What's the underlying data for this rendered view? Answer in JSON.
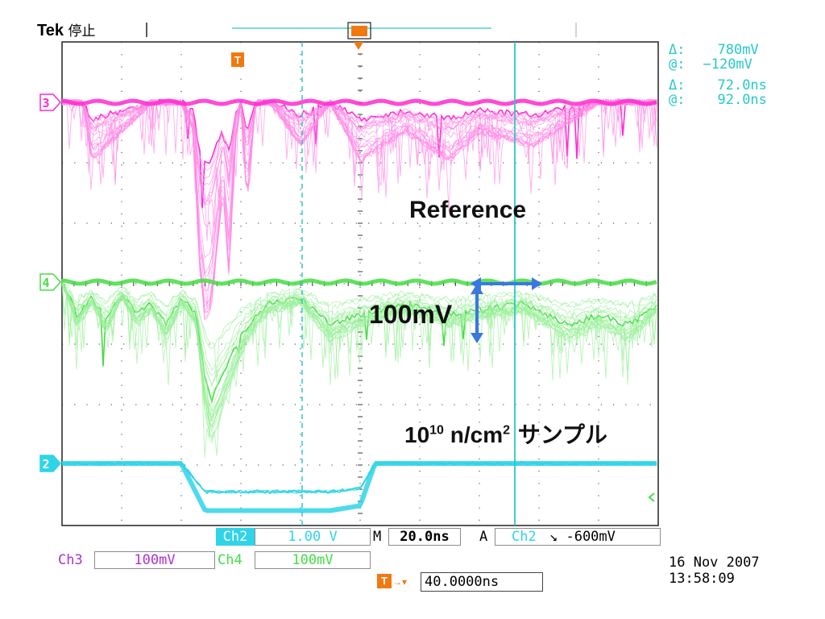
{
  "header": {
    "brand": "Tek",
    "status": "停止"
  },
  "cursor_readout": {
    "delta_v_symbol": "Δ:",
    "delta_v": "780mV",
    "at_v_symbol": "@:",
    "at_v": "−120mV",
    "delta_t_symbol": "Δ:",
    "delta_t": "72.0ns",
    "at_t_symbol": "@:",
    "at_t": "92.0ns"
  },
  "markers": {
    "trigger": "T",
    "ch3": "3",
    "ch4": "4",
    "ch2": "2"
  },
  "annotations": {
    "reference": "Reference",
    "scale": "100mV",
    "sample_base": "10",
    "sample_exp1": "10",
    "sample_mid": " n/cm",
    "sample_exp2": "2",
    "sample_tail": " サンプル"
  },
  "settings": {
    "ch2_label": "Ch2",
    "ch2_scale": "1.00 V",
    "timebase_label": "M",
    "timebase": "20.0ns",
    "trigger_mode": "A",
    "trigger_source": "Ch2",
    "trigger_slope": "↘",
    "trigger_level": "-600mV",
    "ch3_label": "Ch3",
    "ch3_scale": "100mV",
    "ch4_label": "Ch4",
    "ch4_scale": "100mV",
    "trigger_position": "40.0000ns",
    "date": "16 Nov 2007",
    "time": "13:58:09"
  },
  "colors": {
    "ch3": "#ff2ad0",
    "ch3_light": "#ff8ae6",
    "ch4": "#44dd44",
    "ch4_light": "#9af09a",
    "ch2": "#2fd4e8",
    "cursor": "#28c8c8",
    "grid": "#333333",
    "arrow": "#3a78e0",
    "trigger_marker": "#f07a10",
    "label_purple": "#b030d0"
  },
  "chart_data": {
    "type": "line",
    "title": "",
    "xlabel": "",
    "ylabel": "",
    "x_unit": "ns",
    "x_range": [
      -40,
      160
    ],
    "divisions": {
      "x": 10,
      "y": 8
    },
    "grid": true,
    "series": [
      {
        "name": "Ch3",
        "scale_per_div": "100mV",
        "x": [
          -40,
          -33,
          -30,
          -10,
          0,
          4,
          6,
          8,
          10,
          12,
          14,
          16,
          18,
          20,
          22,
          25,
          30,
          40,
          50,
          60,
          75,
          90,
          100,
          118,
          140,
          160
        ],
        "y": [
          0,
          0,
          -80,
          0,
          0,
          -40,
          -220,
          -300,
          -280,
          -200,
          -120,
          -240,
          -60,
          0,
          -140,
          0,
          0,
          -60,
          0,
          -80,
          -40,
          -80,
          -40,
          -60,
          0,
          0
        ]
      },
      {
        "name": "Ch4",
        "scale_per_div": "100mV",
        "x": [
          -40,
          -35,
          -30,
          -25,
          -20,
          -15,
          -10,
          -5,
          0,
          5,
          8,
          10,
          15,
          20,
          25,
          30,
          40,
          50,
          60,
          75,
          90,
          100,
          115,
          130,
          140,
          150,
          160
        ],
        "y": [
          0,
          -60,
          -30,
          -70,
          -20,
          -60,
          -40,
          -80,
          -30,
          -60,
          -180,
          -220,
          -160,
          -100,
          -60,
          -40,
          -30,
          -80,
          -60,
          -40,
          -60,
          -50,
          -40,
          -80,
          -60,
          -80,
          -40
        ]
      },
      {
        "name": "Ch2",
        "scale_per_div": "1.00 V",
        "x": [
          -40,
          0,
          8,
          50,
          60,
          65,
          160
        ],
        "y": [
          0,
          0,
          -0.78,
          -0.78,
          -0.7,
          0,
          0
        ]
      }
    ],
    "cursors": {
      "voltage_delta": "780mV",
      "voltage_at": "-120mV",
      "time_delta": "72.0ns",
      "time_at": "92.0ns"
    }
  }
}
